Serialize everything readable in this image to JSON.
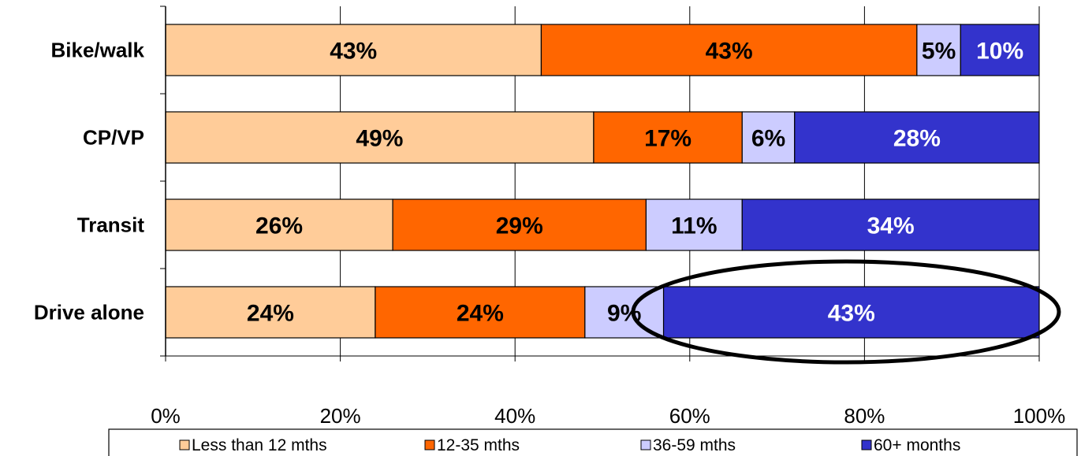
{
  "chart_data": {
    "type": "bar",
    "orientation": "horizontal",
    "stacked": true,
    "categories": [
      "Bike/walk",
      "CP/VP",
      "Transit",
      "Drive alone"
    ],
    "series": [
      {
        "name": "Less than 12 mths",
        "color": "#FFCC99",
        "values": [
          43,
          49,
          26,
          24
        ],
        "labels": [
          "43%",
          "49%",
          "26%",
          "24%"
        ]
      },
      {
        "name": "12-35 mths",
        "color": "#FF6600",
        "values": [
          43,
          17,
          29,
          24
        ],
        "labels": [
          "43%",
          "17%",
          "29%",
          "24%"
        ]
      },
      {
        "name": "36-59 mths",
        "color": "#CCCCFF",
        "values": [
          5,
          6,
          11,
          9
        ],
        "labels": [
          "5%",
          "6%",
          "11%",
          "9%"
        ]
      },
      {
        "name": "60+ months",
        "color": "#3333CC",
        "values": [
          10,
          28,
          34,
          43
        ],
        "labels": [
          "10%",
          "28%",
          "34%",
          "43%"
        ]
      }
    ],
    "xlim": [
      0,
      100
    ],
    "x_ticks": [
      "0%",
      "20%",
      "40%",
      "60%",
      "80%",
      "100%"
    ],
    "grid": "vertical",
    "legend_position": "bottom",
    "annotation": "ellipse around Drive alone 60+ months"
  }
}
